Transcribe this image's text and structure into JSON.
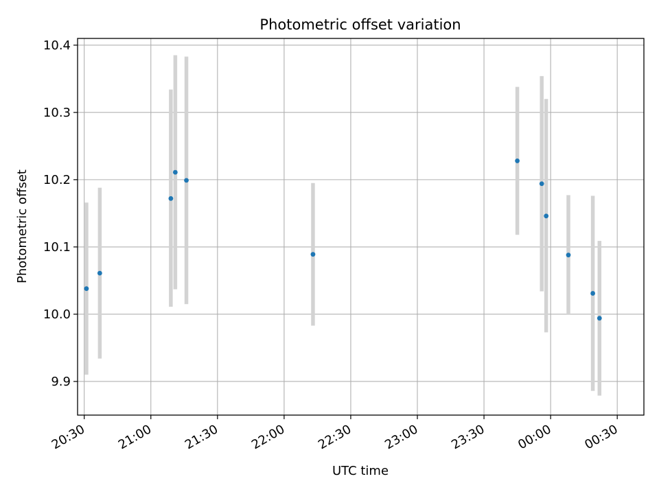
{
  "chart_data": {
    "type": "scatter",
    "title": "Photometric offset variation",
    "xlabel": "UTC time",
    "ylabel": "Photometric offset",
    "x_axis": "time (minutes after 20:00 UTC, day rolls past midnight)",
    "xlim": [
      27,
      282
    ],
    "ylim": [
      9.85,
      10.41
    ],
    "xticks": [
      {
        "value": 30,
        "label": "20:30"
      },
      {
        "value": 60,
        "label": "21:00"
      },
      {
        "value": 90,
        "label": "21:30"
      },
      {
        "value": 120,
        "label": "22:00"
      },
      {
        "value": 150,
        "label": "22:30"
      },
      {
        "value": 180,
        "label": "23:00"
      },
      {
        "value": 210,
        "label": "23:30"
      },
      {
        "value": 240,
        "label": "00:00"
      },
      {
        "value": 270,
        "label": "00:30"
      }
    ],
    "yticks": [
      {
        "value": 9.9,
        "label": "9.9"
      },
      {
        "value": 10.0,
        "label": "10.0"
      },
      {
        "value": 10.1,
        "label": "10.1"
      },
      {
        "value": 10.2,
        "label": "10.2"
      },
      {
        "value": 10.3,
        "label": "10.3"
      },
      {
        "value": 10.4,
        "label": "10.4"
      }
    ],
    "grid": true,
    "x_tick_rotation": "30 degrees",
    "colors": {
      "points": "#1f77b4",
      "error_bars": "#d3d3d3",
      "grid": "#b0b0b0"
    },
    "points": [
      {
        "time": "20:31",
        "y": 10.038,
        "ylow": 9.91,
        "yhigh": 10.166
      },
      {
        "time": "20:37",
        "y": 10.061,
        "ylow": 9.934,
        "yhigh": 10.188
      },
      {
        "time": "21:09",
        "y": 10.172,
        "ylow": 10.011,
        "yhigh": 10.334
      },
      {
        "time": "21:11",
        "y": 10.211,
        "ylow": 10.037,
        "yhigh": 10.385
      },
      {
        "time": "21:16",
        "y": 10.199,
        "ylow": 10.015,
        "yhigh": 10.383
      },
      {
        "time": "22:13",
        "y": 10.089,
        "ylow": 9.983,
        "yhigh": 10.195
      },
      {
        "time": "23:45",
        "y": 10.228,
        "ylow": 10.118,
        "yhigh": 10.338
      },
      {
        "time": "23:56",
        "y": 10.194,
        "ylow": 10.034,
        "yhigh": 10.354
      },
      {
        "time": "23:58",
        "y": 10.146,
        "ylow": 9.973,
        "yhigh": 10.32
      },
      {
        "time": "00:08",
        "y": 10.088,
        "ylow": 9.999,
        "yhigh": 10.177
      },
      {
        "time": "00:19",
        "y": 10.031,
        "ylow": 9.886,
        "yhigh": 10.176
      },
      {
        "time": "00:22",
        "y": 9.994,
        "ylow": 9.879,
        "yhigh": 10.109
      }
    ]
  }
}
